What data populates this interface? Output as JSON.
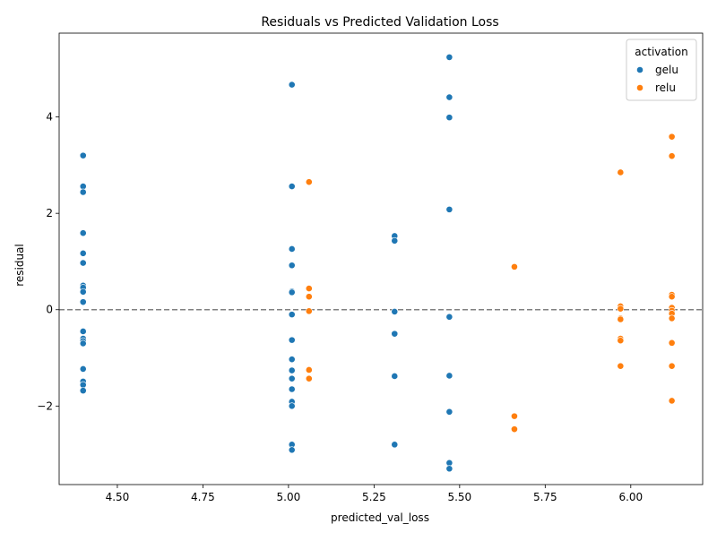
{
  "chart_data": {
    "type": "scatter",
    "title": "Residuals vs Predicted Validation Loss",
    "xlabel": "predicted_val_loss",
    "ylabel": "residual",
    "xlim": [
      4.33,
      6.21
    ],
    "ylim": [
      -3.63,
      5.74
    ],
    "xticks": [
      4.5,
      4.75,
      5.0,
      5.25,
      5.5,
      5.75,
      6.0
    ],
    "xtick_labels": [
      "4.50",
      "4.75",
      "5.00",
      "5.25",
      "5.50",
      "5.75",
      "6.00"
    ],
    "yticks": [
      -2,
      0,
      2,
      4
    ],
    "ytick_labels": [
      "−2",
      "0",
      "2",
      "4"
    ],
    "reference_line": {
      "y": 0,
      "style": "dashed",
      "color": "#808080"
    },
    "grid": false,
    "legend": {
      "title": "activation",
      "position": "top-right"
    },
    "series": [
      {
        "name": "gelu",
        "color": "#1f77b4",
        "points": [
          [
            4.4,
            3.2
          ],
          [
            4.4,
            2.56
          ],
          [
            4.4,
            2.44
          ],
          [
            4.4,
            1.59
          ],
          [
            4.4,
            1.17
          ],
          [
            4.4,
            0.97
          ],
          [
            4.4,
            0.5
          ],
          [
            4.4,
            0.46
          ],
          [
            4.4,
            0.37
          ],
          [
            4.4,
            0.16
          ],
          [
            4.4,
            -0.45
          ],
          [
            4.4,
            -0.6
          ],
          [
            4.4,
            -0.65
          ],
          [
            4.4,
            -0.7
          ],
          [
            4.4,
            -1.23
          ],
          [
            4.4,
            -1.49
          ],
          [
            4.4,
            -1.56
          ],
          [
            4.4,
            -1.68
          ],
          [
            5.01,
            4.67
          ],
          [
            5.01,
            2.56
          ],
          [
            5.01,
            1.26
          ],
          [
            5.01,
            0.92
          ],
          [
            5.01,
            0.38
          ],
          [
            5.01,
            0.36
          ],
          [
            5.01,
            -0.1
          ],
          [
            5.01,
            -0.63
          ],
          [
            5.01,
            -1.03
          ],
          [
            5.01,
            -1.26
          ],
          [
            5.01,
            -1.43
          ],
          [
            5.01,
            -1.65
          ],
          [
            5.01,
            -1.91
          ],
          [
            5.01,
            -2.0
          ],
          [
            5.01,
            -2.8
          ],
          [
            5.01,
            -2.91
          ],
          [
            5.31,
            1.53
          ],
          [
            5.31,
            1.43
          ],
          [
            5.31,
            -0.04
          ],
          [
            5.31,
            -0.5
          ],
          [
            5.31,
            -1.38
          ],
          [
            5.31,
            -2.8
          ],
          [
            5.47,
            5.24
          ],
          [
            5.47,
            4.41
          ],
          [
            5.47,
            3.99
          ],
          [
            5.47,
            2.08
          ],
          [
            5.47,
            -0.15
          ],
          [
            5.47,
            -1.37
          ],
          [
            5.47,
            -2.12
          ],
          [
            5.47,
            -3.18
          ],
          [
            5.47,
            -3.3
          ]
        ]
      },
      {
        "name": "relu",
        "color": "#ff7f0e",
        "points": [
          [
            5.06,
            2.65
          ],
          [
            5.06,
            0.44
          ],
          [
            5.06,
            0.27
          ],
          [
            5.06,
            -0.03
          ],
          [
            5.06,
            -1.25
          ],
          [
            5.06,
            -1.43
          ],
          [
            5.66,
            0.89
          ],
          [
            5.66,
            -2.21
          ],
          [
            5.66,
            -2.48
          ],
          [
            5.97,
            2.85
          ],
          [
            5.97,
            0.07
          ],
          [
            5.97,
            0.02
          ],
          [
            5.97,
            -0.18
          ],
          [
            5.97,
            -0.2
          ],
          [
            5.97,
            -0.6
          ],
          [
            5.97,
            -0.64
          ],
          [
            5.97,
            -1.17
          ],
          [
            6.12,
            3.59
          ],
          [
            6.12,
            3.19
          ],
          [
            6.12,
            0.31
          ],
          [
            6.12,
            0.27
          ],
          [
            6.12,
            0.04
          ],
          [
            6.12,
            -0.02
          ],
          [
            6.12,
            -0.08
          ],
          [
            6.12,
            -0.18
          ],
          [
            6.12,
            -0.69
          ],
          [
            6.12,
            -1.17
          ],
          [
            6.12,
            -1.89
          ]
        ]
      }
    ]
  }
}
